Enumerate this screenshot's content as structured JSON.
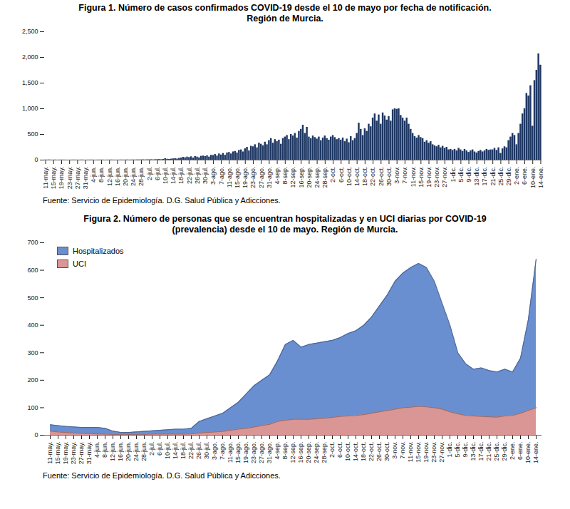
{
  "chart_data": [
    {
      "type": "bar",
      "title": "Figura 1. Número de casos confirmados COVID-19 desde el 10 de mayo por fecha de notificación. Región de Murcia.",
      "source": "Fuente: Servicio de Epidemiología. D.G. Salud Pública y Adicciones.",
      "categories": [
        "11-may.",
        null,
        null,
        null,
        "15-may.",
        null,
        null,
        null,
        "19-may.",
        null,
        null,
        null,
        "23-may.",
        null,
        null,
        null,
        "27-may.",
        null,
        null,
        null,
        "31-may.",
        null,
        null,
        null,
        "4-jun.",
        null,
        null,
        null,
        "8-jun.",
        null,
        null,
        null,
        "12-jun.",
        null,
        null,
        null,
        "16-jun.",
        null,
        null,
        null,
        "20-jun.",
        null,
        null,
        null,
        "24-jun.",
        null,
        null,
        null,
        "28-jun.",
        null,
        null,
        null,
        "2-jul.",
        null,
        null,
        null,
        "6-jul.",
        null,
        null,
        null,
        "10-jul.",
        null,
        null,
        null,
        "14-jul.",
        null,
        null,
        null,
        "18-jul.",
        null,
        null,
        null,
        "22-jul.",
        null,
        null,
        null,
        "26-jul.",
        null,
        null,
        null,
        "30-jul.",
        null,
        null,
        null,
        "3-ago.",
        null,
        null,
        null,
        "7-ago.",
        null,
        null,
        null,
        "11-ago.",
        null,
        null,
        null,
        "15-ago.",
        null,
        null,
        null,
        "19-ago.",
        null,
        null,
        null,
        "23-ago.",
        null,
        null,
        null,
        "27-ago.",
        null,
        null,
        null,
        "31-ago.",
        null,
        null,
        null,
        "4-sep.",
        null,
        null,
        null,
        "8-sep.",
        null,
        null,
        null,
        "12-sep.",
        null,
        null,
        null,
        "16-sep.",
        null,
        null,
        null,
        "20-sep.",
        null,
        null,
        null,
        "24-sep.",
        null,
        null,
        null,
        "28-sep.",
        null,
        null,
        null,
        "2-oct.",
        null,
        null,
        null,
        "6-oct.",
        null,
        null,
        null,
        "10-oct.",
        null,
        null,
        null,
        "14-oct.",
        null,
        null,
        null,
        "18-oct.",
        null,
        null,
        null,
        "22-oct.",
        null,
        null,
        null,
        "26-oct.",
        null,
        null,
        null,
        "30-oct.",
        null,
        null,
        null,
        "3-nov.",
        null,
        null,
        null,
        "7-nov.",
        null,
        null,
        null,
        "11-nov.",
        null,
        null,
        null,
        "15-nov.",
        null,
        null,
        null,
        "19-nov.",
        null,
        null,
        null,
        "23-nov.",
        null,
        null,
        null,
        "27-nov.",
        null,
        null,
        null,
        "1-dic.",
        null,
        null,
        null,
        "5-dic.",
        null,
        null,
        null,
        "9-dic.",
        null,
        null,
        null,
        "13-dic.",
        null,
        null,
        null,
        "17-dic.",
        null,
        null,
        null,
        "21-dic.",
        null,
        null,
        null,
        "25-dic.",
        null,
        null,
        null,
        "29-dic.",
        null,
        null,
        null,
        "2-ene.",
        null,
        null,
        null,
        "6-ene.",
        null,
        null,
        null,
        "10-ene.",
        null,
        null,
        null,
        "14-ene."
      ],
      "values": [
        3,
        2,
        4,
        1,
        2,
        3,
        1,
        2,
        3,
        2,
        2,
        1,
        1,
        2,
        3,
        2,
        2,
        1,
        3,
        2,
        1,
        2,
        2,
        3,
        2,
        1,
        2,
        2,
        3,
        2,
        1,
        2,
        2,
        3,
        2,
        1,
        2,
        2,
        3,
        2,
        3,
        4,
        2,
        3,
        4,
        3,
        5,
        4,
        5,
        6,
        4,
        7,
        6,
        8,
        5,
        9,
        10,
        12,
        8,
        15,
        30,
        18,
        14,
        20,
        25,
        30,
        22,
        35,
        40,
        55,
        45,
        60,
        50,
        65,
        40,
        70,
        60,
        45,
        75,
        80,
        70,
        85,
        60,
        95,
        90,
        110,
        80,
        120,
        100,
        130,
        95,
        140,
        150,
        120,
        160,
        170,
        140,
        190,
        200,
        160,
        220,
        250,
        180,
        270,
        260,
        300,
        240,
        330,
        310,
        280,
        350,
        300,
        380,
        420,
        330,
        400,
        360,
        390,
        310,
        420,
        450,
        480,
        400,
        500,
        470,
        520,
        430,
        560,
        600,
        680,
        520,
        640,
        450,
        420,
        470,
        440,
        410,
        450,
        380,
        430,
        470,
        420,
        390,
        450,
        480,
        440,
        400,
        420,
        390,
        430,
        360,
        410,
        340,
        460,
        380,
        420,
        520,
        720,
        600,
        480,
        610,
        560,
        700,
        650,
        820,
        900,
        760,
        880,
        700,
        920,
        860,
        780,
        850,
        760,
        980,
        1000,
        990,
        1000,
        870,
        820,
        760,
        820,
        700,
        600,
        520,
        460,
        430,
        480,
        440,
        420,
        350,
        380,
        330,
        360,
        300,
        280,
        260,
        290,
        240,
        270,
        230,
        250,
        200,
        210,
        190,
        210,
        180,
        230,
        200,
        170,
        210,
        180,
        150,
        180,
        200,
        160,
        140,
        170,
        190,
        160,
        180,
        210,
        190,
        200,
        200,
        230,
        190,
        240,
        130,
        220,
        260,
        240,
        380,
        450,
        520,
        480,
        300,
        520,
        700,
        900,
        1000,
        1300,
        1250,
        1450,
        660,
        1550,
        1750,
        2070,
        1850
      ],
      "color": "#1f3864",
      "ylim": [
        0,
        2500
      ],
      "yticks": [
        0,
        500,
        1000,
        1500,
        2000,
        2500
      ],
      "grid": false
    },
    {
      "type": "area",
      "title": "Figura 2. Número de personas que se encuentran hospitalizadas y en UCI diarias por COVID-19 (prevalencia) desde el 10 de mayo. Región de Murcia.",
      "source": "Fuente: Servicio de Epidemiología. D.G. Salud Pública y Adicciones.",
      "categories": [
        "11-may.",
        "15-may.",
        "19-may.",
        "23-may.",
        "27-may.",
        "31-may.",
        "4-jun.",
        "8-jun.",
        "12-jun.",
        "16-jun.",
        "20-jun.",
        "24-jun.",
        "28-jun.",
        "2-jul.",
        "6-jul.",
        "10-jul.",
        "14-jul.",
        "18-jul.",
        "22-jul.",
        "26-jul.",
        "30-jul.",
        "3-ago.",
        "7-ago.",
        "11-ago.",
        "15-ago.",
        "19-ago.",
        "23-ago.",
        "27-ago.",
        "31-ago.",
        "4-sep.",
        "8-sep.",
        "12-sep.",
        "16-sep.",
        "20-sep.",
        "24-sep.",
        "28-sep.",
        "2-oct.",
        "6-oct.",
        "10-oct.",
        "14-oct.",
        "18-oct.",
        "22-oct.",
        "26-oct.",
        "30-oct.",
        "3-nov.",
        "7-nov.",
        "11-nov.",
        "15-nov.",
        "19-nov.",
        "23-nov.",
        "27-nov.",
        "1-dic.",
        "5-dic.",
        "9-dic.",
        "13-dic.",
        "17-dic.",
        "21-dic.",
        "25-dic.",
        "29-dic.",
        "2-ene.",
        "6-ene.",
        "10-ene.",
        "14-ene."
      ],
      "series": [
        {
          "name": "Hospitalizados",
          "color": "#6a8fd0",
          "values": [
            38,
            35,
            32,
            30,
            28,
            28,
            28,
            25,
            15,
            10,
            10,
            12,
            14,
            16,
            18,
            20,
            22,
            22,
            25,
            50,
            60,
            70,
            80,
            100,
            120,
            150,
            180,
            200,
            220,
            270,
            330,
            345,
            320,
            330,
            335,
            340,
            345,
            355,
            370,
            380,
            400,
            430,
            470,
            510,
            560,
            590,
            610,
            625,
            610,
            560,
            480,
            400,
            300,
            260,
            240,
            245,
            235,
            230,
            240,
            230,
            280,
            420,
            640
          ]
        },
        {
          "name": "UCI",
          "color": "#d99694",
          "values": [
            15,
            12,
            10,
            8,
            7,
            6,
            5,
            4,
            3,
            3,
            3,
            3,
            3,
            4,
            4,
            4,
            4,
            4,
            5,
            8,
            10,
            12,
            14,
            18,
            22,
            25,
            30,
            35,
            40,
            50,
            55,
            58,
            58,
            58,
            60,
            62,
            65,
            68,
            70,
            72,
            75,
            80,
            85,
            90,
            95,
            100,
            102,
            105,
            103,
            100,
            95,
            85,
            78,
            72,
            70,
            68,
            67,
            66,
            70,
            72,
            80,
            90,
            100
          ]
        }
      ],
      "ylim": [
        0,
        700
      ],
      "yticks": [
        0,
        100,
        200,
        300,
        400,
        500,
        600,
        700
      ],
      "stacked": false,
      "legend": "top-left",
      "grid": false
    }
  ]
}
